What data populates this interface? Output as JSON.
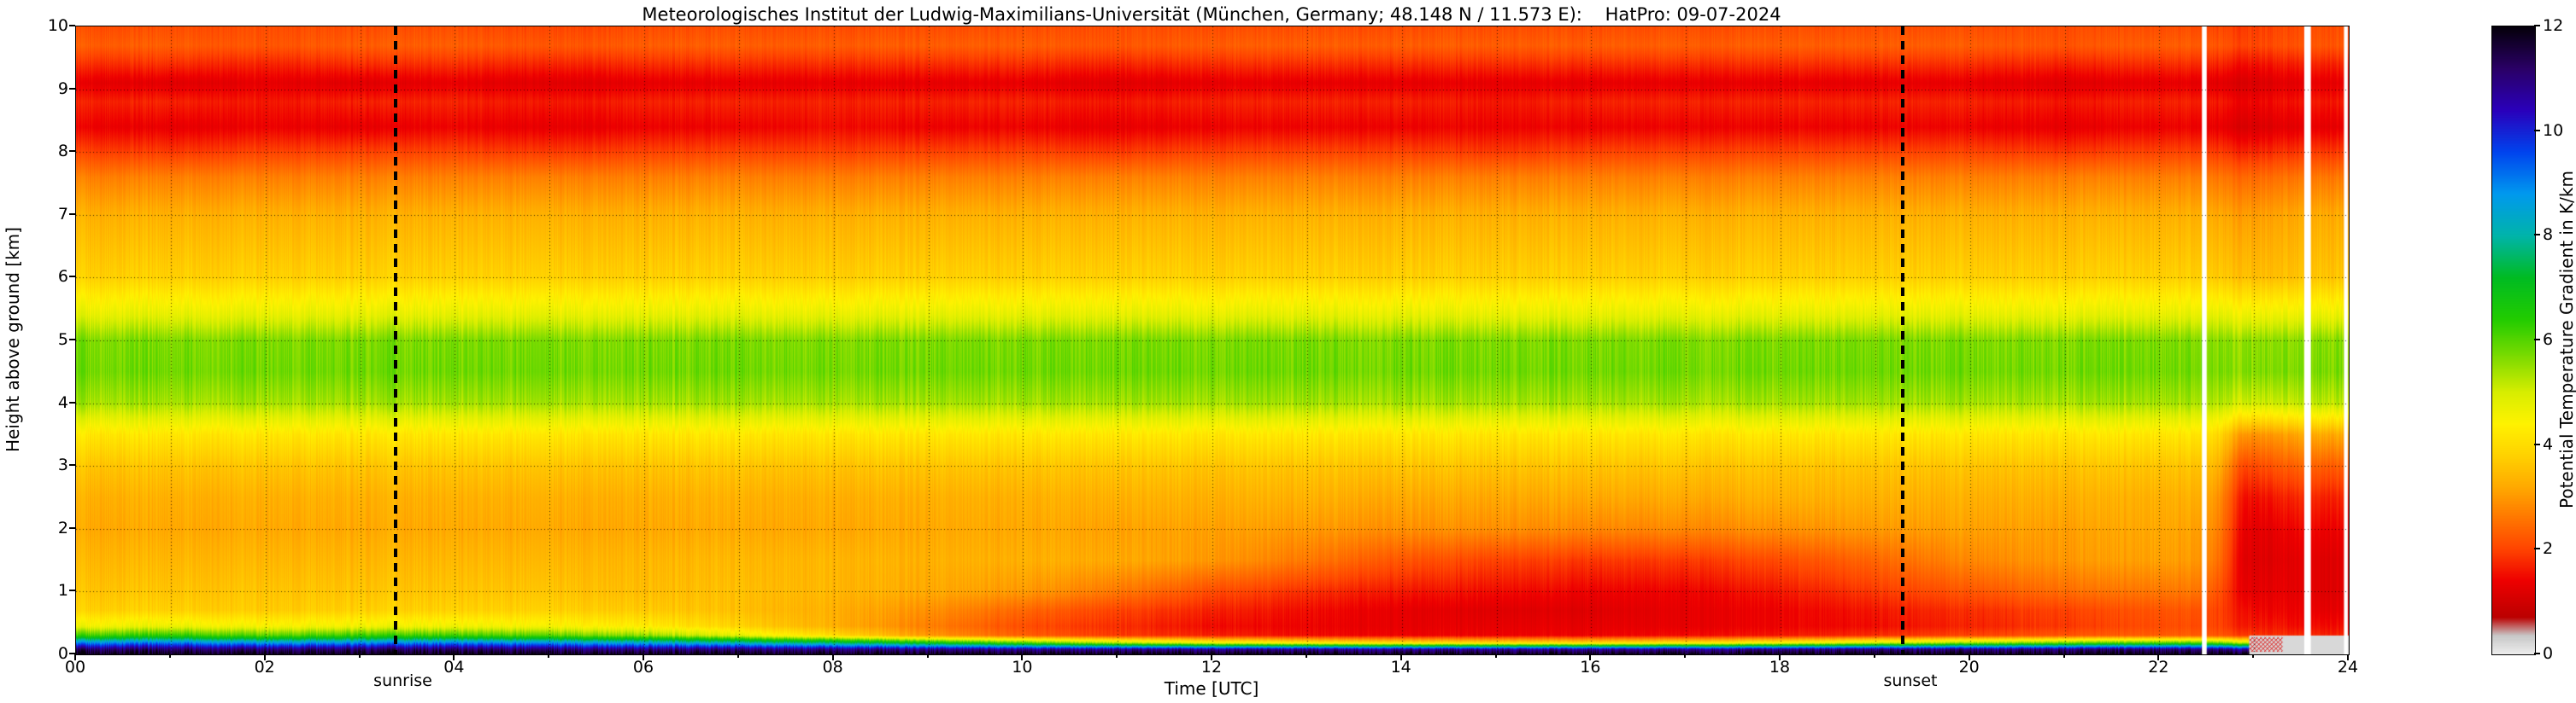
{
  "chart_data": {
    "type": "heatmap",
    "title": "Meteorologisches Institut der Ludwig-Maximilians-Universität (München, Germany; 48.148 N / 11.573 E):    HatPro: 09-07-2024",
    "xlabel": "Time [UTC]",
    "ylabel": "Height above ground [km]",
    "colorbar_label": "Potential Temperature Gradient in K/km",
    "x_range": [
      0,
      24
    ],
    "y_range": [
      0,
      10
    ],
    "value_range": [
      0,
      12
    ],
    "x_tick_hours": [
      0,
      2,
      4,
      6,
      8,
      10,
      12,
      14,
      16,
      18,
      20,
      22,
      24
    ],
    "x_tick_labels": [
      "00",
      "02",
      "04",
      "06",
      "08",
      "10",
      "12",
      "14",
      "16",
      "18",
      "20",
      "22",
      "24"
    ],
    "y_tick_values": [
      0,
      1,
      2,
      3,
      4,
      5,
      6,
      7,
      8,
      9,
      10
    ],
    "y_tick_labels": [
      "0",
      "1",
      "2",
      "3",
      "4",
      "5",
      "6",
      "7",
      "8",
      "9",
      "10"
    ],
    "colorbar_tick_values": [
      0,
      2,
      4,
      6,
      8,
      10,
      12
    ],
    "colorbar_tick_labels": [
      "0",
      "2",
      "4",
      "6",
      "8",
      "10",
      "12"
    ],
    "grid_lines": {
      "x_interval_hours": 1,
      "y_interval_km": 1,
      "style": "dotted"
    },
    "annotations": [
      {
        "text": "sunrise",
        "x_utc": 3.37,
        "line_style": "dashed"
      },
      {
        "text": "sunset",
        "x_utc": 19.29,
        "line_style": "dashed"
      }
    ],
    "colormap_stops": [
      [
        0.0,
        "#ececec"
      ],
      [
        0.35,
        "#c8c8c8"
      ],
      [
        0.7,
        "#bb0000"
      ],
      [
        1.4,
        "#ee0000"
      ],
      [
        2.0,
        "#ff4400"
      ],
      [
        2.6,
        "#ff7700"
      ],
      [
        3.2,
        "#ffaa00"
      ],
      [
        3.8,
        "#ffd200"
      ],
      [
        4.4,
        "#fff200"
      ],
      [
        5.0,
        "#d8ee00"
      ],
      [
        5.6,
        "#88dd00"
      ],
      [
        6.4,
        "#22cc00"
      ],
      [
        7.2,
        "#00bb22"
      ],
      [
        8.0,
        "#00b4aa"
      ],
      [
        8.8,
        "#0099ee"
      ],
      [
        9.6,
        "#0044ee"
      ],
      [
        10.4,
        "#2a00bb"
      ],
      [
        11.2,
        "#2a0066"
      ],
      [
        12.0,
        "#05000a"
      ]
    ],
    "noise": {
      "column_amplitude": 0.05,
      "low_value_boost": 0.13
    },
    "field": {
      "heights_km": [
        0,
        0.08,
        0.18,
        0.3,
        0.45,
        0.7,
        1.0,
        1.5,
        2.0,
        2.5,
        3.0,
        3.5,
        4.0,
        4.5,
        5.0,
        5.4,
        6.0,
        7.0,
        7.6,
        8.0,
        8.4,
        8.8,
        9.1,
        9.4,
        9.7,
        10.0
      ],
      "times_utc": [
        0,
        1,
        2,
        3,
        4,
        5,
        6,
        7,
        8,
        9,
        10,
        11,
        12,
        13,
        14,
        15,
        16,
        17,
        18,
        19,
        20,
        21,
        22,
        22.4,
        22.6,
        22.9,
        23.2,
        23.5,
        23.7,
        24
      ],
      "profiles": [
        [
          12,
          11.2,
          9.0,
          6.2,
          4.6,
          3.8,
          3.6,
          3.4,
          3.2,
          3.3,
          3.6,
          4.2,
          5.4,
          5.8,
          5.7,
          4.8,
          3.8,
          3.3,
          2.7,
          2.0,
          1.4,
          1.7,
          1.3,
          1.8,
          2.3,
          2.1
        ],
        [
          12,
          11.2,
          9.2,
          6.4,
          4.7,
          3.8,
          3.6,
          3.4,
          3.2,
          3.3,
          3.6,
          4.2,
          5.4,
          5.8,
          5.7,
          4.8,
          3.8,
          3.3,
          2.7,
          1.9,
          1.3,
          1.7,
          1.2,
          1.8,
          2.3,
          2.1
        ],
        [
          12,
          11.1,
          8.8,
          6.0,
          4.5,
          3.7,
          3.6,
          3.4,
          3.2,
          3.3,
          3.6,
          4.2,
          5.4,
          5.8,
          5.7,
          4.8,
          3.8,
          3.3,
          2.7,
          2.0,
          1.4,
          1.6,
          1.3,
          1.7,
          2.2,
          2.1
        ],
        [
          12,
          11.2,
          9.0,
          6.3,
          4.6,
          3.8,
          3.6,
          3.4,
          3.2,
          3.3,
          3.6,
          4.2,
          5.4,
          5.8,
          5.7,
          4.8,
          3.8,
          3.3,
          2.7,
          2.0,
          1.3,
          1.7,
          1.2,
          1.8,
          2.3,
          2.1
        ],
        [
          12,
          11.2,
          9.1,
          6.2,
          4.6,
          3.8,
          3.6,
          3.4,
          3.2,
          3.3,
          3.6,
          4.2,
          5.4,
          5.8,
          5.7,
          4.8,
          3.8,
          3.3,
          2.7,
          2.0,
          1.4,
          1.7,
          1.3,
          1.8,
          2.3,
          2.1
        ],
        [
          12,
          11.1,
          8.9,
          6.0,
          4.5,
          3.8,
          3.6,
          3.4,
          3.2,
          3.3,
          3.6,
          4.2,
          5.4,
          5.8,
          5.7,
          4.8,
          3.8,
          3.3,
          2.7,
          1.9,
          1.3,
          1.6,
          1.2,
          1.7,
          2.2,
          2.0
        ],
        [
          12,
          11.0,
          8.6,
          5.6,
          4.3,
          3.7,
          3.5,
          3.4,
          3.2,
          3.3,
          3.6,
          4.2,
          5.4,
          5.8,
          5.7,
          4.8,
          3.8,
          3.3,
          2.7,
          2.0,
          1.4,
          1.7,
          1.3,
          1.8,
          2.3,
          2.1
        ],
        [
          12,
          11.0,
          8.2,
          4.8,
          3.8,
          3.5,
          3.5,
          3.4,
          3.2,
          3.3,
          3.6,
          4.2,
          5.4,
          5.8,
          5.7,
          4.8,
          3.8,
          3.3,
          2.7,
          2.0,
          1.4,
          1.7,
          1.3,
          1.8,
          2.3,
          2.1
        ],
        [
          12,
          11.0,
          7.8,
          4.0,
          3.3,
          3.3,
          3.4,
          3.4,
          3.2,
          3.3,
          3.6,
          4.2,
          5.4,
          5.8,
          5.7,
          4.8,
          3.8,
          3.3,
          2.7,
          2.0,
          1.5,
          1.7,
          1.3,
          1.8,
          2.3,
          2.1
        ],
        [
          12,
          10.9,
          7.0,
          3.0,
          2.7,
          2.9,
          3.2,
          3.3,
          3.2,
          3.3,
          3.6,
          4.2,
          5.4,
          5.8,
          5.7,
          4.8,
          3.8,
          3.3,
          2.7,
          2.0,
          1.4,
          1.7,
          1.3,
          1.8,
          2.3,
          2.1
        ],
        [
          12,
          10.8,
          6.2,
          2.3,
          2.1,
          2.4,
          3.0,
          3.3,
          3.2,
          3.3,
          3.6,
          4.2,
          5.4,
          5.8,
          5.7,
          4.8,
          3.8,
          3.3,
          2.7,
          2.0,
          1.4,
          1.7,
          1.3,
          1.8,
          2.3,
          2.1
        ],
        [
          12,
          10.8,
          5.4,
          1.9,
          1.8,
          2.0,
          2.6,
          3.2,
          3.1,
          3.3,
          3.6,
          4.2,
          5.4,
          5.8,
          5.7,
          4.8,
          3.8,
          3.3,
          2.7,
          1.9,
          1.3,
          1.6,
          1.2,
          1.7,
          2.2,
          2.1
        ],
        [
          12,
          10.8,
          4.8,
          1.7,
          1.5,
          1.7,
          2.1,
          3.0,
          3.1,
          3.3,
          3.6,
          4.2,
          5.4,
          5.8,
          5.7,
          4.8,
          3.8,
          3.3,
          2.7,
          2.0,
          1.4,
          1.7,
          1.3,
          1.8,
          2.3,
          2.1
        ],
        [
          12,
          10.8,
          4.4,
          1.5,
          1.4,
          1.5,
          1.8,
          2.6,
          3.0,
          3.3,
          3.6,
          4.2,
          5.4,
          5.8,
          5.7,
          4.8,
          3.8,
          3.3,
          2.7,
          2.0,
          1.4,
          1.7,
          1.3,
          1.8,
          2.3,
          2.1
        ],
        [
          12,
          10.8,
          4.2,
          1.4,
          1.3,
          1.3,
          1.6,
          2.2,
          2.9,
          3.2,
          3.6,
          4.2,
          5.4,
          5.8,
          5.7,
          4.8,
          3.8,
          3.3,
          2.7,
          2.0,
          1.4,
          1.7,
          1.3,
          1.8,
          2.3,
          2.1
        ],
        [
          12,
          10.8,
          4.1,
          1.4,
          1.3,
          1.2,
          1.5,
          2.0,
          2.9,
          3.2,
          3.6,
          4.2,
          5.4,
          5.8,
          5.7,
          4.8,
          3.8,
          3.3,
          2.7,
          1.9,
          1.4,
          1.6,
          1.3,
          1.8,
          2.3,
          2.1
        ],
        [
          12,
          10.8,
          4.1,
          1.4,
          1.3,
          1.2,
          1.4,
          1.9,
          2.8,
          3.2,
          3.6,
          4.2,
          5.4,
          5.8,
          5.7,
          4.8,
          3.8,
          3.3,
          2.7,
          2.0,
          1.4,
          1.7,
          1.3,
          1.8,
          2.3,
          2.1
        ],
        [
          12,
          10.8,
          4.3,
          1.5,
          1.3,
          1.3,
          1.4,
          1.9,
          2.8,
          3.2,
          3.6,
          4.2,
          5.4,
          5.8,
          5.7,
          4.8,
          3.8,
          3.3,
          2.7,
          2.0,
          1.4,
          1.7,
          1.3,
          1.8,
          2.3,
          2.1
        ],
        [
          12,
          10.9,
          4.6,
          1.6,
          1.4,
          1.4,
          1.6,
          2.1,
          2.9,
          3.3,
          3.6,
          4.2,
          5.4,
          5.8,
          5.7,
          4.8,
          3.8,
          3.3,
          2.7,
          2.0,
          1.4,
          1.7,
          1.3,
          1.8,
          2.3,
          2.1
        ],
        [
          12,
          11.0,
          5.1,
          1.8,
          1.5,
          1.6,
          1.9,
          2.4,
          3.0,
          3.3,
          3.6,
          4.2,
          5.4,
          5.8,
          5.7,
          4.8,
          3.8,
          3.3,
          2.7,
          2.0,
          1.4,
          1.7,
          1.3,
          1.8,
          2.3,
          2.1
        ],
        [
          12,
          11.0,
          5.6,
          2.0,
          1.7,
          1.8,
          2.2,
          2.8,
          3.1,
          3.3,
          3.6,
          4.2,
          5.4,
          5.8,
          5.7,
          4.8,
          3.8,
          3.3,
          2.7,
          2.0,
          1.4,
          1.7,
          1.3,
          1.8,
          2.3,
          2.1
        ],
        [
          12,
          11.1,
          6.0,
          2.2,
          1.9,
          2.0,
          2.5,
          3.0,
          3.1,
          3.3,
          3.6,
          4.2,
          5.4,
          5.8,
          5.7,
          4.8,
          3.8,
          3.3,
          2.7,
          1.9,
          1.3,
          1.6,
          1.2,
          1.7,
          2.2,
          2.1
        ],
        [
          12,
          11.1,
          6.2,
          2.3,
          2.1,
          2.2,
          2.6,
          3.1,
          3.2,
          3.3,
          3.6,
          4.2,
          5.4,
          5.8,
          5.7,
          4.8,
          3.8,
          3.3,
          2.7,
          2.0,
          1.4,
          1.7,
          1.3,
          1.8,
          2.3,
          2.1
        ],
        [
          12,
          11.1,
          6.2,
          2.3,
          2.1,
          2.2,
          2.6,
          3.0,
          3.1,
          3.3,
          3.6,
          4.2,
          5.4,
          5.8,
          5.7,
          4.8,
          3.8,
          3.3,
          2.7,
          2.0,
          1.4,
          1.7,
          1.3,
          1.8,
          2.3,
          2.1
        ],
        [
          12,
          11.0,
          6.0,
          2.2,
          2.0,
          2.0,
          2.2,
          2.6,
          2.8,
          3.0,
          3.4,
          4.0,
          5.3,
          5.7,
          5.6,
          4.8,
          3.7,
          3.2,
          2.6,
          1.9,
          1.3,
          1.6,
          1.2,
          1.7,
          2.2,
          2.0
        ],
        [
          12,
          10.6,
          5.2,
          1.9,
          1.6,
          1.5,
          1.3,
          1.2,
          1.3,
          1.5,
          2.0,
          2.9,
          5.0,
          5.6,
          5.5,
          4.6,
          3.5,
          3.0,
          2.4,
          1.7,
          1.1,
          1.4,
          1.1,
          1.5,
          2.0,
          1.9
        ],
        [
          12,
          10.6,
          5.0,
          1.8,
          1.6,
          1.4,
          1.3,
          1.2,
          1.3,
          1.6,
          2.2,
          3.0,
          5.1,
          5.7,
          5.6,
          4.7,
          3.5,
          3.1,
          2.5,
          1.8,
          1.2,
          1.5,
          1.2,
          1.6,
          2.1,
          2.0
        ],
        [
          12,
          10.7,
          5.0,
          1.8,
          1.5,
          1.4,
          1.3,
          1.3,
          1.5,
          1.8,
          2.4,
          3.2,
          5.2,
          5.7,
          5.6,
          4.7,
          3.6,
          3.2,
          2.6,
          1.9,
          1.3,
          1.6,
          1.3,
          1.7,
          2.2,
          2.1
        ],
        [
          12,
          10.7,
          4.8,
          1.7,
          1.5,
          1.3,
          1.2,
          1.2,
          1.4,
          1.7,
          2.3,
          3.2,
          5.2,
          5.7,
          5.6,
          4.7,
          3.6,
          3.2,
          2.6,
          1.9,
          1.3,
          1.6,
          1.3,
          1.7,
          2.2,
          2.1
        ],
        [
          12,
          10.7,
          4.8,
          1.7,
          1.5,
          1.3,
          1.2,
          1.2,
          1.4,
          1.7,
          2.3,
          3.2,
          5.2,
          5.7,
          5.6,
          4.7,
          3.6,
          3.2,
          2.6,
          1.9,
          1.3,
          1.6,
          1.3,
          1.7,
          2.2,
          2.1
        ]
      ]
    },
    "gaps": [
      {
        "x_utc": 22.45,
        "width_h": 0.05
      },
      {
        "x_utc": 23.53,
        "width_h": 0.07
      },
      {
        "x_utc": 23.95,
        "width_h": 0.04
      }
    ],
    "artifacts": [
      {
        "x0": 22.95,
        "x1": 24,
        "y0": 0,
        "y1": 0.3,
        "color": "#d8d8d8"
      },
      {
        "x0": 22.95,
        "x1": 23.3,
        "y0": 0.04,
        "y1": 0.28,
        "color": "#d8d8d8",
        "hatch_color": "#dd2222"
      }
    ]
  }
}
